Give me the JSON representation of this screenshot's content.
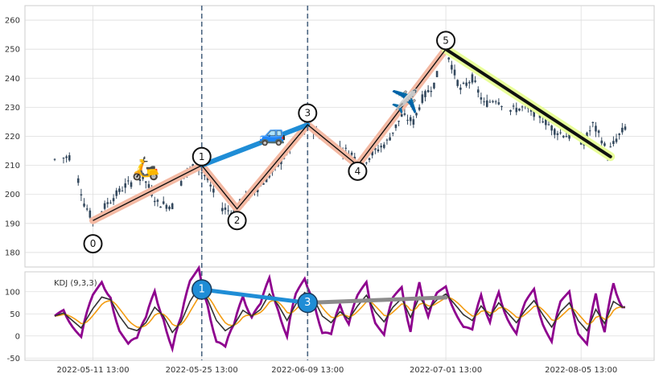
{
  "chart_data": [
    {
      "type": "candlestick",
      "x_ticks": [
        "2022-05-11 13:00",
        "2022-05-25 13:00",
        "2022-06-09 13:00",
        "2022-07-01 13:00",
        "2022-08-05 13:00"
      ],
      "ylim": [
        175,
        265
      ],
      "y_ticks": [
        180,
        190,
        200,
        210,
        220,
        230,
        240,
        250,
        260
      ],
      "grid": true,
      "candle_color": "#34495e",
      "price_walk": [
        [
          0,
          212
        ],
        [
          5,
          213
        ],
        [
          8,
          205
        ],
        [
          10,
          197
        ],
        [
          13,
          191
        ],
        [
          18,
          197
        ],
        [
          24,
          203
        ],
        [
          30,
          206
        ],
        [
          35,
          197
        ],
        [
          40,
          196
        ],
        [
          44,
          207
        ],
        [
          48,
          210
        ],
        [
          52,
          205
        ],
        [
          56,
          196
        ],
        [
          60,
          194
        ],
        [
          64,
          198
        ],
        [
          70,
          203
        ],
        [
          76,
          210
        ],
        [
          82,
          219
        ],
        [
          86,
          224
        ],
        [
          92,
          219
        ],
        [
          97,
          216
        ],
        [
          101,
          214
        ],
        [
          104,
          210
        ],
        [
          108,
          214
        ],
        [
          113,
          218
        ],
        [
          118,
          227
        ],
        [
          122,
          225
        ],
        [
          125,
          233
        ],
        [
          129,
          238
        ],
        [
          133,
          250
        ],
        [
          138,
          236
        ],
        [
          142,
          240
        ],
        [
          146,
          231
        ],
        [
          150,
          233
        ],
        [
          155,
          229
        ],
        [
          160,
          230
        ],
        [
          165,
          227
        ],
        [
          170,
          222
        ],
        [
          175,
          220
        ],
        [
          180,
          218
        ],
        [
          183,
          224
        ],
        [
          186,
          219
        ],
        [
          188,
          214
        ],
        [
          191,
          219
        ],
        [
          194,
          223
        ]
      ],
      "zigzag_pivots": [
        {
          "label": "0",
          "x": 13,
          "y": 191
        },
        {
          "label": "1",
          "x": 50,
          "y": 210
        },
        {
          "label": "2",
          "x": 62,
          "y": 195
        },
        {
          "label": "3",
          "x": 86,
          "y": 224
        },
        {
          "label": "4",
          "x": 103,
          "y": 210
        },
        {
          "label": "5",
          "x": 133,
          "y": 250
        },
        {
          "label": "",
          "x": 189,
          "y": 213
        }
      ],
      "pivot_labels": [
        {
          "label": "0",
          "x": 13,
          "y": 183
        },
        {
          "label": "1",
          "x": 50,
          "y": 213
        },
        {
          "label": "2",
          "x": 62,
          "y": 191
        },
        {
          "label": "3",
          "x": 86,
          "y": 228
        },
        {
          "label": "4",
          "x": 103,
          "y": 208
        },
        {
          "label": "5",
          "x": 133,
          "y": 253
        }
      ],
      "trend_lines": [
        {
          "from": [
            50,
            210
          ],
          "to": [
            86,
            224
          ],
          "color": "#1f8dd6"
        },
        {
          "from": [
            133,
            250
          ],
          "to": [
            189,
            213
          ],
          "color": "#111111",
          "halo": "#e9ff9a"
        }
      ],
      "zigzag_halo_color": "#f4b9a3",
      "vertical_markers_x": [
        50,
        86
      ],
      "vertical_marker_color": "#4a6480",
      "icons": [
        {
          "name": "scooter",
          "glyph": "🛵",
          "x": 31,
          "y": 209
        },
        {
          "name": "car",
          "glyph": "🚙",
          "x": 74,
          "y": 221
        },
        {
          "name": "airplane",
          "glyph": "✈️",
          "x": 119,
          "y": 232
        }
      ]
    },
    {
      "type": "line",
      "title": "KDJ (9,3,3)",
      "x_ticks": [
        "2022-05-11 13:00",
        "2022-05-25 13:00",
        "2022-06-09 13:00",
        "2022-07-01 13:00",
        "2022-08-05 13:00"
      ],
      "ylim": [
        -55,
        145
      ],
      "y_ticks": [
        -50,
        0,
        50,
        100
      ],
      "series": [
        {
          "key": "K",
          "color": "#333333"
        },
        {
          "key": "D",
          "color": "#f39c12"
        },
        {
          "key": "J",
          "color": "#8e008e"
        }
      ],
      "k_walk": [
        [
          0,
          45
        ],
        [
          3,
          52
        ],
        [
          6,
          35
        ],
        [
          9,
          18
        ],
        [
          13,
          62
        ],
        [
          16,
          88
        ],
        [
          19,
          82
        ],
        [
          22,
          45
        ],
        [
          25,
          18
        ],
        [
          28,
          12
        ],
        [
          31,
          30
        ],
        [
          34,
          65
        ],
        [
          37,
          45
        ],
        [
          40,
          8
        ],
        [
          43,
          32
        ],
        [
          46,
          78
        ],
        [
          49,
          110
        ],
        [
          52,
          82
        ],
        [
          55,
          35
        ],
        [
          58,
          12
        ],
        [
          61,
          25
        ],
        [
          64,
          58
        ],
        [
          67,
          45
        ],
        [
          70,
          60
        ],
        [
          73,
          95
        ],
        [
          76,
          70
        ],
        [
          79,
          35
        ],
        [
          82,
          72
        ],
        [
          85,
          98
        ],
        [
          88,
          85
        ],
        [
          91,
          45
        ],
        [
          94,
          30
        ],
        [
          97,
          55
        ],
        [
          100,
          38
        ],
        [
          103,
          68
        ],
        [
          106,
          92
        ],
        [
          109,
          55
        ],
        [
          112,
          32
        ],
        [
          115,
          65
        ],
        [
          118,
          85
        ],
        [
          121,
          42
        ],
        [
          124,
          88
        ],
        [
          127,
          60
        ],
        [
          130,
          82
        ],
        [
          133,
          95
        ],
        [
          136,
          72
        ],
        [
          139,
          48
        ],
        [
          142,
          35
        ],
        [
          145,
          68
        ],
        [
          148,
          45
        ],
        [
          151,
          75
        ],
        [
          154,
          52
        ],
        [
          157,
          30
        ],
        [
          160,
          58
        ],
        [
          163,
          80
        ],
        [
          166,
          48
        ],
        [
          169,
          20
        ],
        [
          172,
          55
        ],
        [
          175,
          75
        ],
        [
          178,
          35
        ],
        [
          181,
          12
        ],
        [
          184,
          60
        ],
        [
          187,
          28
        ],
        [
          190,
          78
        ],
        [
          193,
          65
        ]
      ],
      "trend_lines": [
        {
          "from": [
            50,
            105
          ],
          "to": [
            86,
            75
          ],
          "color": "#1f8dd6"
        },
        {
          "from": [
            86,
            75
          ],
          "to": [
            133,
            87
          ],
          "color": "#8c8c8c"
        }
      ],
      "pivot_labels": [
        {
          "label": "1",
          "x": 50,
          "y": 105
        },
        {
          "label": "3",
          "x": 86,
          "y": 75
        }
      ]
    }
  ]
}
